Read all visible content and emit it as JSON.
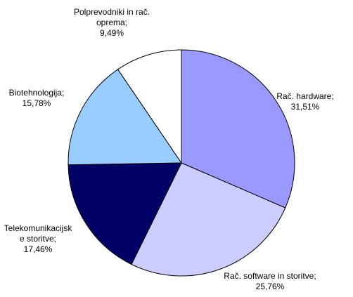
{
  "chart_data": {
    "type": "pie",
    "categories": [
      "Rač. hardware",
      "Rač. software in storitve",
      "Telekomunikacijske storitve",
      "Biotehnologija",
      "Polprevodniki in rač. oprema"
    ],
    "values": [
      31.51,
      25.76,
      17.46,
      15.78,
      9.49
    ],
    "value_labels": [
      "31,51%",
      "25,76%",
      "17,46%",
      "15,78%",
      "9,49%"
    ],
    "colors": [
      "#9999ff",
      "#ccccff",
      "#000066",
      "#99ccff",
      "#ffffff"
    ]
  }
}
